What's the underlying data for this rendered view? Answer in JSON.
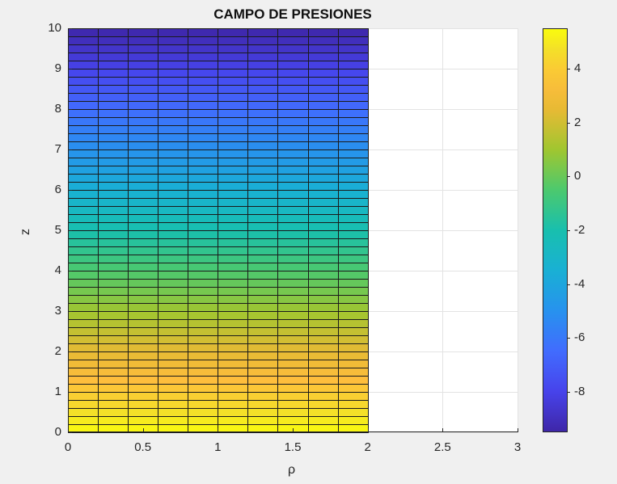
{
  "chart_data": {
    "type": "heatmap",
    "title": "CAMPO DE PRESIONES",
    "xlabel": "ρ",
    "ylabel": "z",
    "xlim": [
      0,
      3
    ],
    "ylim": [
      0,
      10
    ],
    "xticks": [
      0,
      0.5,
      1,
      1.5,
      2,
      2.5,
      3
    ],
    "xtick_labels": [
      "0",
      "0.5",
      "1",
      "1.5",
      "2",
      "2.5",
      "3"
    ],
    "yticks": [
      0,
      1,
      2,
      3,
      4,
      5,
      6,
      7,
      8,
      9,
      10
    ],
    "ytick_labels": [
      "0",
      "1",
      "2",
      "3",
      "4",
      "5",
      "6",
      "7",
      "8",
      "9",
      "10"
    ],
    "grid": true,
    "surface": {
      "rho_range": [
        0,
        2
      ],
      "z_range": [
        0,
        10
      ],
      "rho_cells": 10,
      "z_cells": 50,
      "rho_step": 0.2,
      "z_step": 0.2,
      "value_model": "p = 5.5 - 1.5*z (uniform across rho)",
      "p_at_z0": 5.5,
      "p_at_z10": -9.5
    },
    "colorbar": {
      "colormap": "parula",
      "clim": [
        -9.5,
        5.5
      ],
      "ticks": [
        -8,
        -6,
        -4,
        -2,
        0,
        2,
        4
      ],
      "tick_labels": [
        "-8",
        "-6",
        "-4",
        "-2",
        "0",
        "2",
        "4"
      ],
      "position": "right"
    }
  }
}
